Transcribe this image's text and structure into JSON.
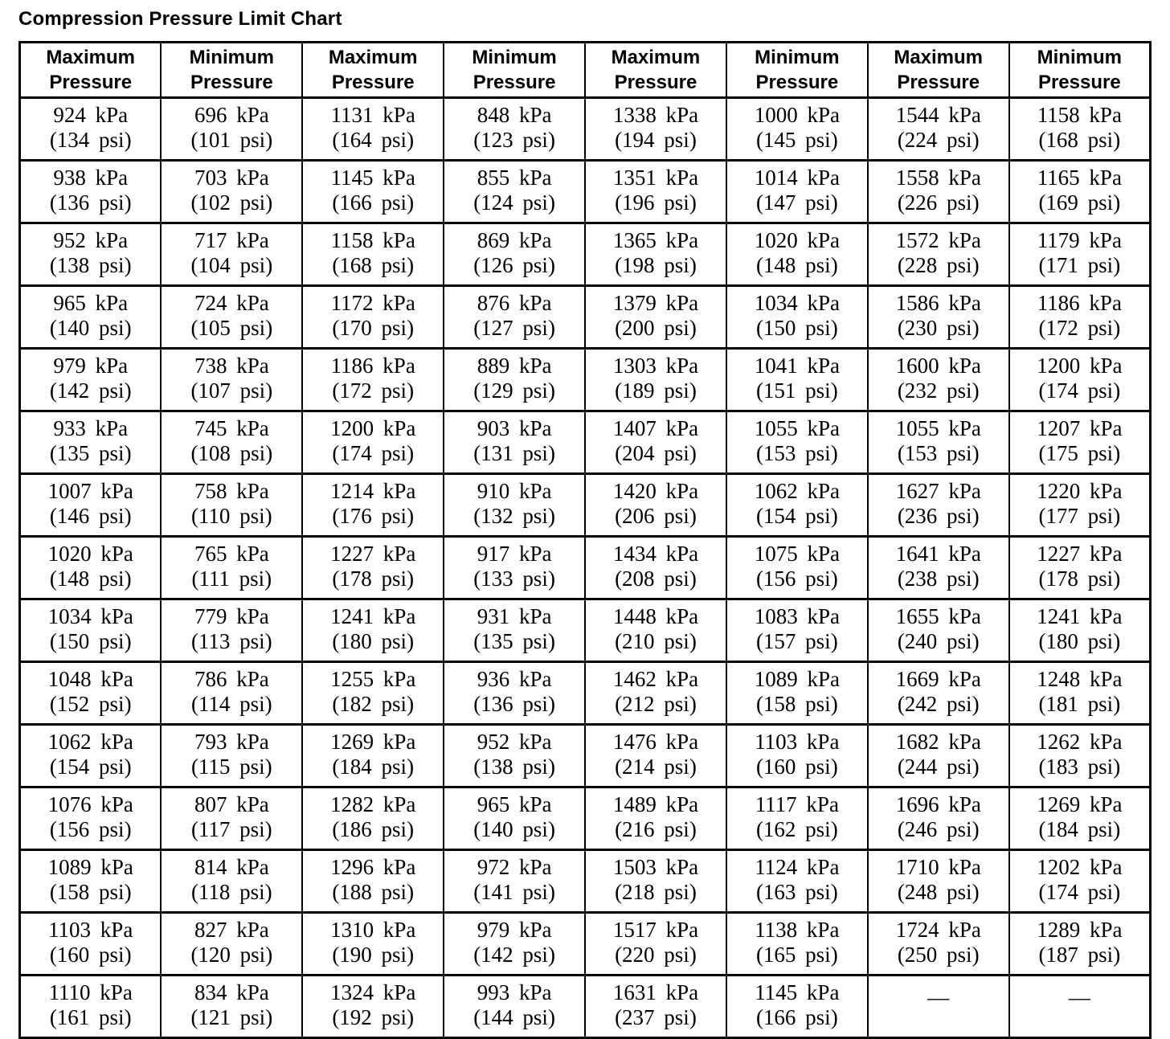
{
  "title": "Compression Pressure Limit Chart",
  "table": {
    "headers": [
      {
        "top": "Maximum",
        "bottom": "Pressure"
      },
      {
        "top": "Minimum",
        "bottom": "Pressure"
      },
      {
        "top": "Maximum",
        "bottom": "Pressure"
      },
      {
        "top": "Minimum",
        "bottom": "Pressure"
      },
      {
        "top": "Maximum",
        "bottom": "Pressure"
      },
      {
        "top": "Minimum",
        "bottom": "Pressure"
      },
      {
        "top": "Maximum",
        "bottom": "Pressure"
      },
      {
        "top": "Minimum",
        "bottom": "Pressure"
      }
    ],
    "rows": [
      [
        {
          "kpa": "924 kPa",
          "psi": "(134 psi)"
        },
        {
          "kpa": "696 kPa",
          "psi": "(101 psi)"
        },
        {
          "kpa": "1131 kPa",
          "psi": "(164 psi)"
        },
        {
          "kpa": "848 kPa",
          "psi": "(123 psi)"
        },
        {
          "kpa": "1338 kPa",
          "psi": "(194 psi)"
        },
        {
          "kpa": "1000 kPa",
          "psi": "(145 psi)"
        },
        {
          "kpa": "1544 kPa",
          "psi": "(224 psi)"
        },
        {
          "kpa": "1158 kPa",
          "psi": "(168 psi)"
        }
      ],
      [
        {
          "kpa": "938 kPa",
          "psi": "(136 psi)"
        },
        {
          "kpa": "703 kPa",
          "psi": "(102 psi)"
        },
        {
          "kpa": "1145 kPa",
          "psi": "(166 psi)"
        },
        {
          "kpa": "855 kPa",
          "psi": "(124 psi)"
        },
        {
          "kpa": "1351 kPa",
          "psi": "(196 psi)"
        },
        {
          "kpa": "1014 kPa",
          "psi": "(147 psi)"
        },
        {
          "kpa": "1558 kPa",
          "psi": "(226 psi)"
        },
        {
          "kpa": "1165 kPa",
          "psi": "(169 psi)"
        }
      ],
      [
        {
          "kpa": "952 kPa",
          "psi": "(138 psi)"
        },
        {
          "kpa": "717 kPa",
          "psi": "(104 psi)"
        },
        {
          "kpa": "1158 kPa",
          "psi": "(168 psi)"
        },
        {
          "kpa": "869 kPa",
          "psi": "(126 psi)"
        },
        {
          "kpa": "1365 kPa",
          "psi": "(198 psi)"
        },
        {
          "kpa": "1020 kPa",
          "psi": "(148 psi)"
        },
        {
          "kpa": "1572 kPa",
          "psi": "(228 psi)"
        },
        {
          "kpa": "1179 kPa",
          "psi": "(171 psi)"
        }
      ],
      [
        {
          "kpa": "965 kPa",
          "psi": "(140 psi)"
        },
        {
          "kpa": "724 kPa",
          "psi": "(105 psi)"
        },
        {
          "kpa": "1172 kPa",
          "psi": "(170 psi)"
        },
        {
          "kpa": "876 kPa",
          "psi": "(127 psi)"
        },
        {
          "kpa": "1379 kPa",
          "psi": "(200 psi)"
        },
        {
          "kpa": "1034 kPa",
          "psi": "(150 psi)"
        },
        {
          "kpa": "1586 kPa",
          "psi": "(230 psi)"
        },
        {
          "kpa": "1186 kPa",
          "psi": "(172 psi)"
        }
      ],
      [
        {
          "kpa": "979 kPa",
          "psi": "(142 psi)"
        },
        {
          "kpa": "738 kPa",
          "psi": "(107 psi)"
        },
        {
          "kpa": "1186 kPa",
          "psi": "(172 psi)"
        },
        {
          "kpa": "889 kPa",
          "psi": "(129 psi)"
        },
        {
          "kpa": "1303 kPa",
          "psi": "(189 psi)"
        },
        {
          "kpa": "1041 kPa",
          "psi": "(151 psi)"
        },
        {
          "kpa": "1600 kPa",
          "psi": "(232 psi)"
        },
        {
          "kpa": "1200 kPa",
          "psi": "(174 psi)"
        }
      ],
      [
        {
          "kpa": "933 kPa",
          "psi": "(135 psi)"
        },
        {
          "kpa": "745 kPa",
          "psi": "(108 psi)"
        },
        {
          "kpa": "1200 kPa",
          "psi": "(174 psi)"
        },
        {
          "kpa": "903 kPa",
          "psi": "(131 psi)"
        },
        {
          "kpa": "1407 kPa",
          "psi": "(204 psi)"
        },
        {
          "kpa": "1055 kPa",
          "psi": "(153 psi)"
        },
        {
          "kpa": "1055 kPa",
          "psi": "(153 psi)"
        },
        {
          "kpa": "1207 kPa",
          "psi": "(175 psi)"
        }
      ],
      [
        {
          "kpa": "1007 kPa",
          "psi": "(146 psi)"
        },
        {
          "kpa": "758 kPa",
          "psi": "(110 psi)"
        },
        {
          "kpa": "1214 kPa",
          "psi": "(176 psi)"
        },
        {
          "kpa": "910 kPa",
          "psi": "(132 psi)"
        },
        {
          "kpa": "1420 kPa",
          "psi": "(206 psi)"
        },
        {
          "kpa": "1062 kPa",
          "psi": "(154 psi)"
        },
        {
          "kpa": "1627 kPa",
          "psi": "(236 psi)"
        },
        {
          "kpa": "1220 kPa",
          "psi": "(177 psi)"
        }
      ],
      [
        {
          "kpa": "1020 kPa",
          "psi": "(148 psi)"
        },
        {
          "kpa": "765 kPa",
          "psi": "(111 psi)"
        },
        {
          "kpa": "1227 kPa",
          "psi": "(178 psi)"
        },
        {
          "kpa": "917 kPa",
          "psi": "(133 psi)"
        },
        {
          "kpa": "1434 kPa",
          "psi": "(208 psi)"
        },
        {
          "kpa": "1075 kPa",
          "psi": "(156 psi)"
        },
        {
          "kpa": "1641 kPa",
          "psi": "(238 psi)"
        },
        {
          "kpa": "1227 kPa",
          "psi": "(178 psi)"
        }
      ],
      [
        {
          "kpa": "1034 kPa",
          "psi": "(150 psi)"
        },
        {
          "kpa": "779 kPa",
          "psi": "(113 psi)"
        },
        {
          "kpa": "1241 kPa",
          "psi": "(180 psi)"
        },
        {
          "kpa": "931 kPa",
          "psi": "(135 psi)"
        },
        {
          "kpa": "1448 kPa",
          "psi": "(210 psi)"
        },
        {
          "kpa": "1083 kPa",
          "psi": "(157 psi)"
        },
        {
          "kpa": "1655 kPa",
          "psi": "(240 psi)"
        },
        {
          "kpa": "1241 kPa",
          "psi": "(180 psi)"
        }
      ],
      [
        {
          "kpa": "1048 kPa",
          "psi": "(152 psi)"
        },
        {
          "kpa": "786 kPa",
          "psi": "(114 psi)"
        },
        {
          "kpa": "1255 kPa",
          "psi": "(182 psi)"
        },
        {
          "kpa": "936 kPa",
          "psi": "(136 psi)"
        },
        {
          "kpa": "1462 kPa",
          "psi": "(212 psi)"
        },
        {
          "kpa": "1089 kPa",
          "psi": "(158 psi)"
        },
        {
          "kpa": "1669 kPa",
          "psi": "(242 psi)"
        },
        {
          "kpa": "1248 kPa",
          "psi": "(181 psi)"
        }
      ],
      [
        {
          "kpa": "1062 kPa",
          "psi": "(154 psi)"
        },
        {
          "kpa": "793 kPa",
          "psi": "(115 psi)"
        },
        {
          "kpa": "1269 kPa",
          "psi": "(184 psi)"
        },
        {
          "kpa": "952 kPa",
          "psi": "(138 psi)"
        },
        {
          "kpa": "1476 kPa",
          "psi": "(214 psi)"
        },
        {
          "kpa": "1103 kPa",
          "psi": "(160 psi)"
        },
        {
          "kpa": "1682 kPa",
          "psi": "(244 psi)"
        },
        {
          "kpa": "1262 kPa",
          "psi": "(183 psi)"
        }
      ],
      [
        {
          "kpa": "1076 kPa",
          "psi": "(156 psi)"
        },
        {
          "kpa": "807 kPa",
          "psi": "(117 psi)"
        },
        {
          "kpa": "1282 kPa",
          "psi": "(186 psi)"
        },
        {
          "kpa": "965 kPa",
          "psi": "(140 psi)"
        },
        {
          "kpa": "1489 kPa",
          "psi": "(216 psi)"
        },
        {
          "kpa": "1117 kPa",
          "psi": "(162 psi)"
        },
        {
          "kpa": "1696 kPa",
          "psi": "(246 psi)"
        },
        {
          "kpa": "1269 kPa",
          "psi": "(184 psi)"
        }
      ],
      [
        {
          "kpa": "1089 kPa",
          "psi": "(158 psi)"
        },
        {
          "kpa": "814 kPa",
          "psi": "(118 psi)"
        },
        {
          "kpa": "1296 kPa",
          "psi": "(188 psi)"
        },
        {
          "kpa": "972 kPa",
          "psi": "(141 psi)"
        },
        {
          "kpa": "1503 kPa",
          "psi": "(218 psi)"
        },
        {
          "kpa": "1124 kPa",
          "psi": "(163 psi)"
        },
        {
          "kpa": "1710 kPa",
          "psi": "(248 psi)"
        },
        {
          "kpa": "1202 kPa",
          "psi": "(174 psi)"
        }
      ],
      [
        {
          "kpa": "1103 kPa",
          "psi": "(160 psi)"
        },
        {
          "kpa": "827 kPa",
          "psi": "(120 psi)"
        },
        {
          "kpa": "1310 kPa",
          "psi": "(190 psi)"
        },
        {
          "kpa": "979 kPa",
          "psi": "(142 psi)"
        },
        {
          "kpa": "1517 kPa",
          "psi": "(220 psi)"
        },
        {
          "kpa": "1138 kPa",
          "psi": "(165 psi)"
        },
        {
          "kpa": "1724 kPa",
          "psi": "(250 psi)"
        },
        {
          "kpa": "1289 kPa",
          "psi": "(187 psi)"
        }
      ],
      [
        {
          "kpa": "1110 kPa",
          "psi": "(161 psi)"
        },
        {
          "kpa": "834 kPa",
          "psi": "(121 psi)"
        },
        {
          "kpa": "1324 kPa",
          "psi": "(192 psi)"
        },
        {
          "kpa": "993 kPa",
          "psi": "(144 psi)"
        },
        {
          "kpa": "1631 kPa",
          "psi": "(237 psi)"
        },
        {
          "kpa": "1145 kPa",
          "psi": "(166 psi)"
        },
        {
          "dash": "—"
        },
        {
          "dash": "—"
        }
      ]
    ]
  }
}
